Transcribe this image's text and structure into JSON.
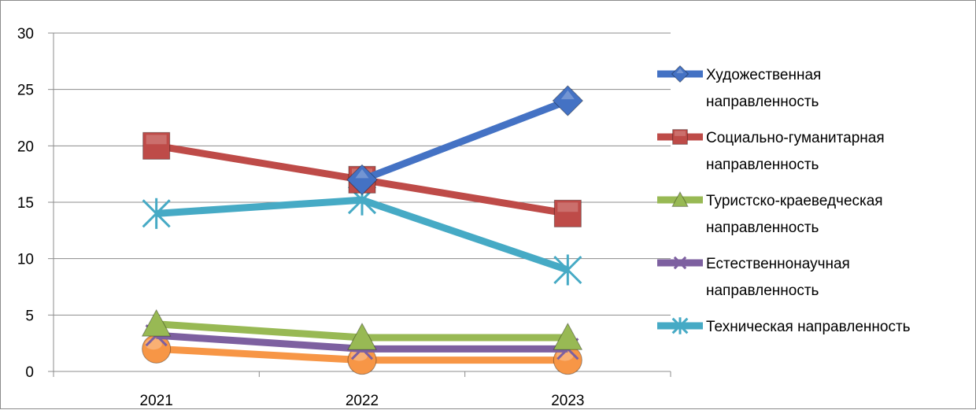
{
  "chart_data": {
    "type": "line",
    "categories": [
      "2021",
      "2022",
      "2023"
    ],
    "ylim": [
      0,
      30
    ],
    "yticks": [
      0,
      5,
      10,
      15,
      20,
      25,
      30
    ],
    "grid": true,
    "legend_position": "right",
    "series": [
      {
        "name_lines": [
          "Художественная",
          "направленность"
        ],
        "values": [
          null,
          17,
          24
        ],
        "color": "#4472c4",
        "marker": "diamond"
      },
      {
        "name_lines": [
          "Социально-гуманитарная",
          "направленность"
        ],
        "values": [
          20,
          17,
          14
        ],
        "color": "#be4b48",
        "marker": "square"
      },
      {
        "name_lines": [
          "Туристско-краеведческая",
          "направленность"
        ],
        "values": [
          4.2,
          3,
          3
        ],
        "color": "#98b954",
        "marker": "triangle"
      },
      {
        "name_lines": [
          "Естественнонаучная",
          "направленность"
        ],
        "values": [
          3.2,
          2,
          2
        ],
        "color": "#7d60a0",
        "marker": "x"
      },
      {
        "name_lines": [
          "Техническая направленность"
        ],
        "values": [
          14,
          15.2,
          9
        ],
        "color": "#46aac5",
        "marker": "star"
      },
      {
        "values": [
          2,
          1,
          1
        ],
        "color": "#f79646",
        "marker": "circle"
      }
    ]
  }
}
